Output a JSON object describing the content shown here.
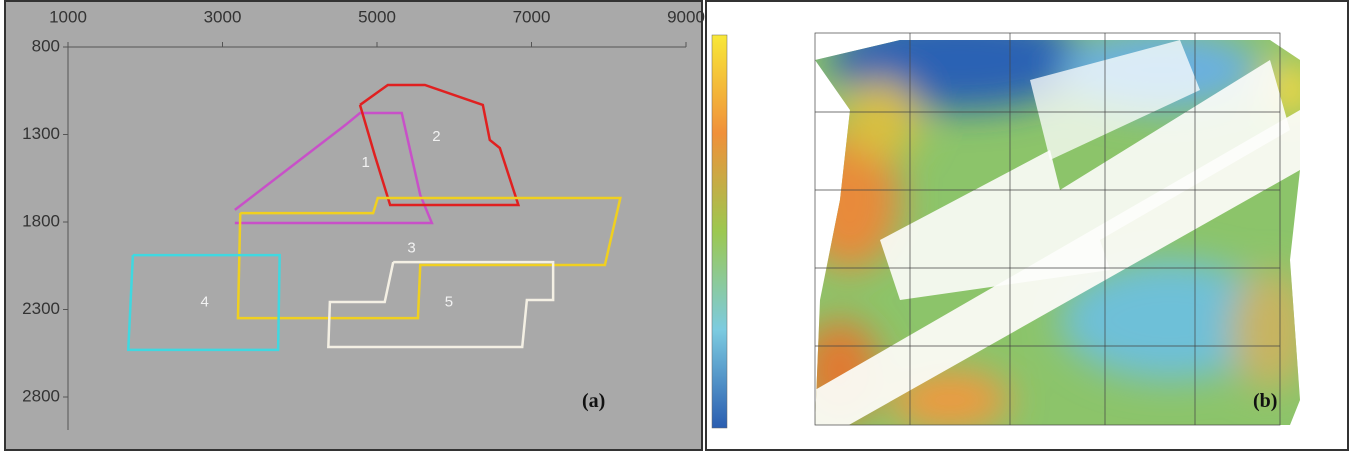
{
  "panel_a": {
    "xlim": [
      1000,
      9000
    ],
    "xticks": [
      1000,
      3000,
      5000,
      7000,
      9000
    ],
    "ylim": [
      800,
      2800
    ],
    "yticks": [
      800,
      1300,
      1800,
      2300,
      2800
    ],
    "tag": "(a)",
    "areas": [
      {
        "label": "1",
        "color": "#c850c8",
        "x": [
          3160,
          4590,
          4780,
          5320,
          5560,
          5710,
          3160
        ],
        "y": [
          1731,
          1246,
          1177,
          1177,
          1646,
          1806,
          1806
        ]
      },
      {
        "label": "2",
        "color": "#e02020",
        "x": [
          4780,
          5140,
          5620,
          6370,
          6460,
          6590,
          6830,
          5170,
          4970,
          4780
        ],
        "y": [
          1131,
          1017,
          1017,
          1131,
          1331,
          1377,
          1703,
          1703,
          1417,
          1131
        ]
      },
      {
        "label": "3",
        "color": "#f0d020",
        "x": [
          3230,
          4950,
          5010,
          8150,
          7950,
          5560,
          5530,
          3200,
          3230
        ],
        "y": [
          1749,
          1749,
          1663,
          1663,
          2046,
          2046,
          2349,
          2349,
          1749
        ]
      },
      {
        "label": "4",
        "color": "#40d8e0",
        "x": [
          1840,
          3740,
          3720,
          1780,
          1840
        ],
        "y": [
          1989,
          1989,
          2531,
          2531,
          1989
        ]
      },
      {
        "label": "5",
        "color": "#f4f0e4",
        "x": [
          5210,
          7280,
          7280,
          6940,
          6880,
          4370,
          4390,
          5100,
          5210
        ],
        "y": [
          2029,
          2029,
          2246,
          2246,
          2514,
          2514,
          2257,
          2257,
          2029
        ]
      }
    ]
  },
  "panel_b": {
    "tag": "(b)"
  }
}
